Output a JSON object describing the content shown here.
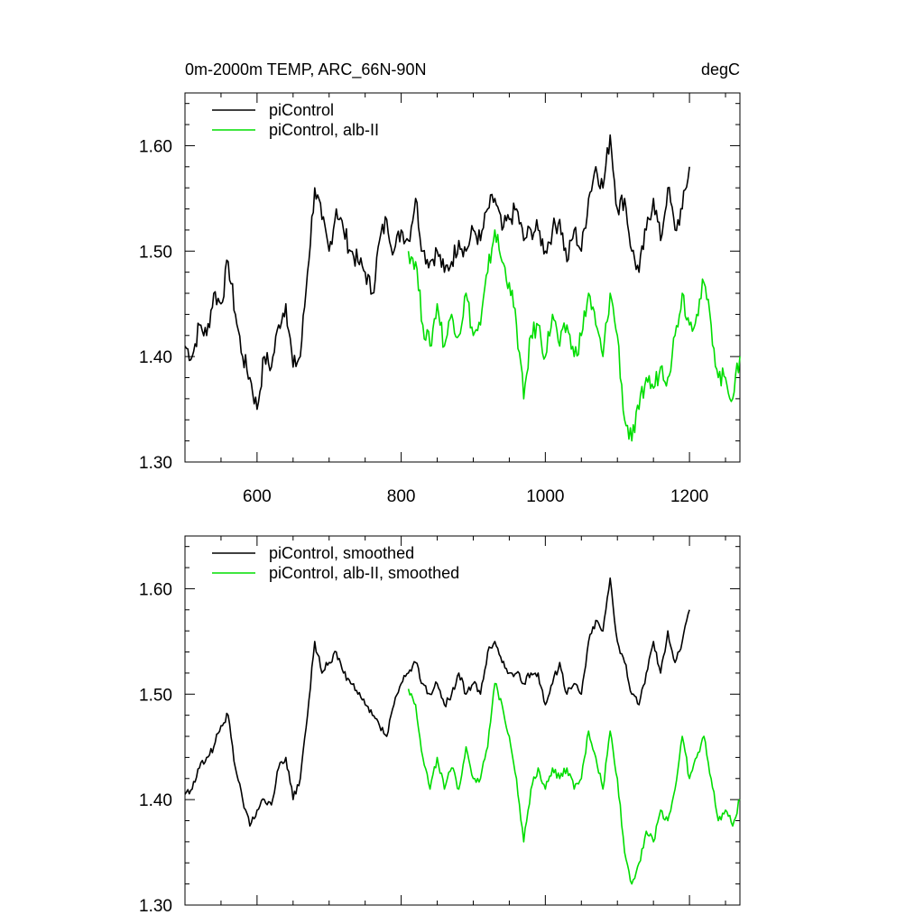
{
  "figure": {
    "title_left": "0m-2000m TEMP, ARC_66N-90N",
    "title_right": "degC"
  },
  "chart_data": [
    {
      "type": "line",
      "title": "0m-2000m TEMP, ARC_66N-90N",
      "units": "degC",
      "xlim": [
        500,
        1270
      ],
      "ylim": [
        1.3,
        1.65
      ],
      "xticks": [
        600,
        800,
        1000,
        1200
      ],
      "xtick_labels": [
        "600",
        "800",
        "1000",
        "1200"
      ],
      "yticks": [
        1.3,
        1.4,
        1.5,
        1.6
      ],
      "ytick_labels": [
        "1.30",
        "1.40",
        "1.50",
        "1.60"
      ],
      "grid": false,
      "legend_position": "top-left",
      "series": [
        {
          "name": "piControl",
          "color": "#000000",
          "x": [
            500,
            510,
            520,
            530,
            540,
            550,
            560,
            570,
            580,
            590,
            600,
            610,
            620,
            630,
            640,
            650,
            660,
            670,
            680,
            690,
            700,
            710,
            720,
            730,
            740,
            750,
            760,
            770,
            780,
            790,
            800,
            810,
            820,
            830,
            840,
            850,
            860,
            870,
            880,
            890,
            900,
            910,
            920,
            930,
            940,
            950,
            960,
            970,
            980,
            990,
            1000,
            1010,
            1020,
            1030,
            1040,
            1050,
            1060,
            1070,
            1080,
            1090,
            1100,
            1110,
            1120,
            1130,
            1140,
            1150,
            1160,
            1170,
            1180,
            1190,
            1200
          ],
          "y": [
            1.41,
            1.4,
            1.43,
            1.42,
            1.46,
            1.45,
            1.49,
            1.44,
            1.4,
            1.38,
            1.35,
            1.4,
            1.39,
            1.43,
            1.45,
            1.39,
            1.4,
            1.48,
            1.56,
            1.53,
            1.5,
            1.54,
            1.52,
            1.5,
            1.49,
            1.48,
            1.46,
            1.51,
            1.53,
            1.5,
            1.52,
            1.51,
            1.55,
            1.5,
            1.49,
            1.5,
            1.48,
            1.49,
            1.51,
            1.5,
            1.52,
            1.51,
            1.54,
            1.55,
            1.52,
            1.53,
            1.54,
            1.51,
            1.52,
            1.52,
            1.5,
            1.52,
            1.53,
            1.49,
            1.52,
            1.5,
            1.55,
            1.58,
            1.56,
            1.61,
            1.54,
            1.55,
            1.5,
            1.48,
            1.52,
            1.55,
            1.51,
            1.56,
            1.52,
            1.54,
            1.58
          ]
        },
        {
          "name": "piControl, alb-II",
          "color": "#00dd00",
          "x": [
            810,
            820,
            830,
            840,
            850,
            860,
            870,
            880,
            890,
            900,
            910,
            920,
            930,
            940,
            950,
            960,
            970,
            980,
            990,
            1000,
            1010,
            1020,
            1030,
            1040,
            1050,
            1060,
            1070,
            1080,
            1090,
            1100,
            1110,
            1120,
            1130,
            1140,
            1150,
            1160,
            1170,
            1180,
            1190,
            1200,
            1210,
            1220,
            1230,
            1240,
            1250,
            1260,
            1270
          ],
          "y": [
            1.5,
            1.49,
            1.43,
            1.41,
            1.45,
            1.41,
            1.44,
            1.42,
            1.46,
            1.42,
            1.43,
            1.48,
            1.52,
            1.49,
            1.47,
            1.43,
            1.36,
            1.42,
            1.43,
            1.4,
            1.44,
            1.41,
            1.43,
            1.4,
            1.42,
            1.46,
            1.43,
            1.4,
            1.46,
            1.42,
            1.34,
            1.32,
            1.35,
            1.38,
            1.37,
            1.39,
            1.38,
            1.42,
            1.46,
            1.43,
            1.44,
            1.47,
            1.43,
            1.38,
            1.38,
            1.36,
            1.4
          ]
        }
      ]
    },
    {
      "type": "line",
      "xlim": [
        500,
        1270
      ],
      "ylim": [
        1.3,
        1.65
      ],
      "xticks": [
        600,
        800,
        1000,
        1200
      ],
      "yticks": [
        1.3,
        1.4,
        1.5,
        1.6
      ],
      "ytick_labels": [
        "1.30",
        "1.40",
        "1.50",
        "1.60"
      ],
      "grid": false,
      "legend_position": "top-left",
      "series": [
        {
          "name": "piControl, smoothed",
          "color": "#000000",
          "x": [
            500,
            510,
            520,
            530,
            540,
            550,
            560,
            570,
            580,
            590,
            600,
            610,
            620,
            630,
            640,
            650,
            660,
            670,
            680,
            690,
            700,
            710,
            720,
            730,
            740,
            750,
            760,
            770,
            780,
            790,
            800,
            810,
            820,
            830,
            840,
            850,
            860,
            870,
            880,
            890,
            900,
            910,
            920,
            930,
            940,
            950,
            960,
            970,
            980,
            990,
            1000,
            1010,
            1020,
            1030,
            1040,
            1050,
            1060,
            1070,
            1080,
            1090,
            1100,
            1110,
            1120,
            1130,
            1140,
            1150,
            1160,
            1170,
            1180,
            1190,
            1200
          ],
          "y": [
            1.405,
            1.41,
            1.43,
            1.44,
            1.45,
            1.47,
            1.48,
            1.43,
            1.4,
            1.375,
            1.39,
            1.4,
            1.395,
            1.43,
            1.44,
            1.4,
            1.42,
            1.48,
            1.55,
            1.52,
            1.53,
            1.54,
            1.52,
            1.51,
            1.5,
            1.49,
            1.48,
            1.47,
            1.46,
            1.49,
            1.51,
            1.52,
            1.53,
            1.51,
            1.5,
            1.51,
            1.49,
            1.5,
            1.52,
            1.5,
            1.51,
            1.5,
            1.54,
            1.55,
            1.53,
            1.52,
            1.52,
            1.51,
            1.52,
            1.52,
            1.49,
            1.51,
            1.53,
            1.5,
            1.51,
            1.5,
            1.55,
            1.57,
            1.56,
            1.61,
            1.55,
            1.53,
            1.5,
            1.49,
            1.52,
            1.55,
            1.52,
            1.56,
            1.53,
            1.55,
            1.58
          ]
        },
        {
          "name": "piControl, alb-II, smoothed",
          "color": "#00dd00",
          "x": [
            810,
            820,
            830,
            840,
            850,
            860,
            870,
            880,
            890,
            900,
            910,
            920,
            930,
            940,
            950,
            960,
            970,
            980,
            990,
            1000,
            1010,
            1020,
            1030,
            1040,
            1050,
            1060,
            1070,
            1080,
            1090,
            1100,
            1110,
            1120,
            1130,
            1140,
            1150,
            1160,
            1170,
            1180,
            1190,
            1200,
            1210,
            1220,
            1230,
            1240,
            1250,
            1260,
            1270
          ],
          "y": [
            1.505,
            1.49,
            1.44,
            1.41,
            1.44,
            1.41,
            1.43,
            1.41,
            1.45,
            1.42,
            1.42,
            1.45,
            1.51,
            1.49,
            1.46,
            1.42,
            1.36,
            1.41,
            1.43,
            1.41,
            1.43,
            1.42,
            1.43,
            1.41,
            1.42,
            1.465,
            1.44,
            1.41,
            1.465,
            1.42,
            1.35,
            1.32,
            1.34,
            1.37,
            1.36,
            1.39,
            1.38,
            1.41,
            1.46,
            1.42,
            1.44,
            1.46,
            1.42,
            1.38,
            1.39,
            1.375,
            1.4
          ]
        }
      ]
    }
  ]
}
